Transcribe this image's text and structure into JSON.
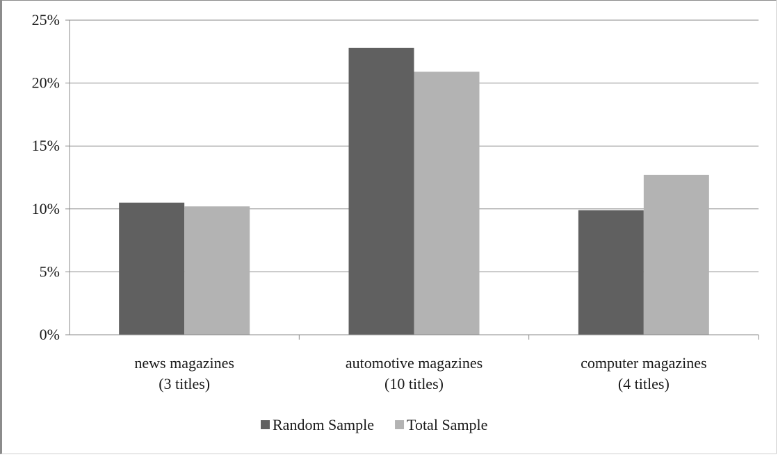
{
  "chart_data": {
    "type": "bar",
    "categories": [
      [
        "news magazines",
        "(3 titles)"
      ],
      [
        "automotive magazines",
        "(10 titles)"
      ],
      [
        "computer magazines",
        "(4 titles)"
      ]
    ],
    "series": [
      {
        "name": "Random Sample",
        "color": "#606060",
        "values": [
          10.5,
          22.8,
          9.9
        ]
      },
      {
        "name": "Total Sample",
        "color": "#b3b3b3",
        "values": [
          10.2,
          20.9,
          12.7
        ]
      }
    ],
    "yticks": [
      "0%",
      "5%",
      "10%",
      "15%",
      "20%",
      "25%"
    ],
    "ylim": [
      0,
      25
    ],
    "grid": true,
    "legend_position": "bottom",
    "title": "",
    "xlabel": "",
    "ylabel": ""
  }
}
